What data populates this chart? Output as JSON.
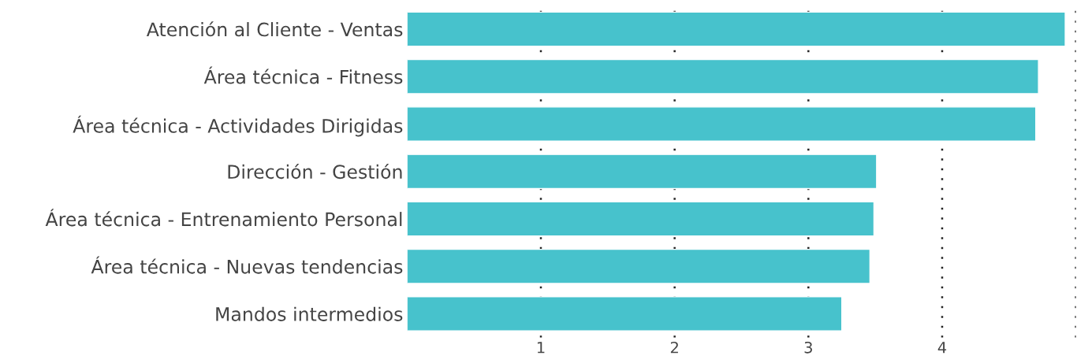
{
  "chart_data": {
    "type": "bar",
    "orientation": "horizontal",
    "categories": [
      "Atención al Cliente - Ventas",
      "Área técnica - Fitness",
      "Área técnica - Actividades Dirigidas",
      "Dirección - Gestión",
      "Área técnica - Entrenamiento Personal",
      "Área técnica - Nuevas tendencias",
      "Mandos intermedios"
    ],
    "values": [
      4.92,
      4.72,
      4.7,
      3.51,
      3.49,
      3.46,
      3.25
    ],
    "color": "#47c2cc",
    "xlim": [
      0,
      5
    ],
    "xticks": [
      1,
      2,
      3,
      4,
      {
        "value": 5,
        "label": null
      }
    ],
    "grid": "x"
  }
}
